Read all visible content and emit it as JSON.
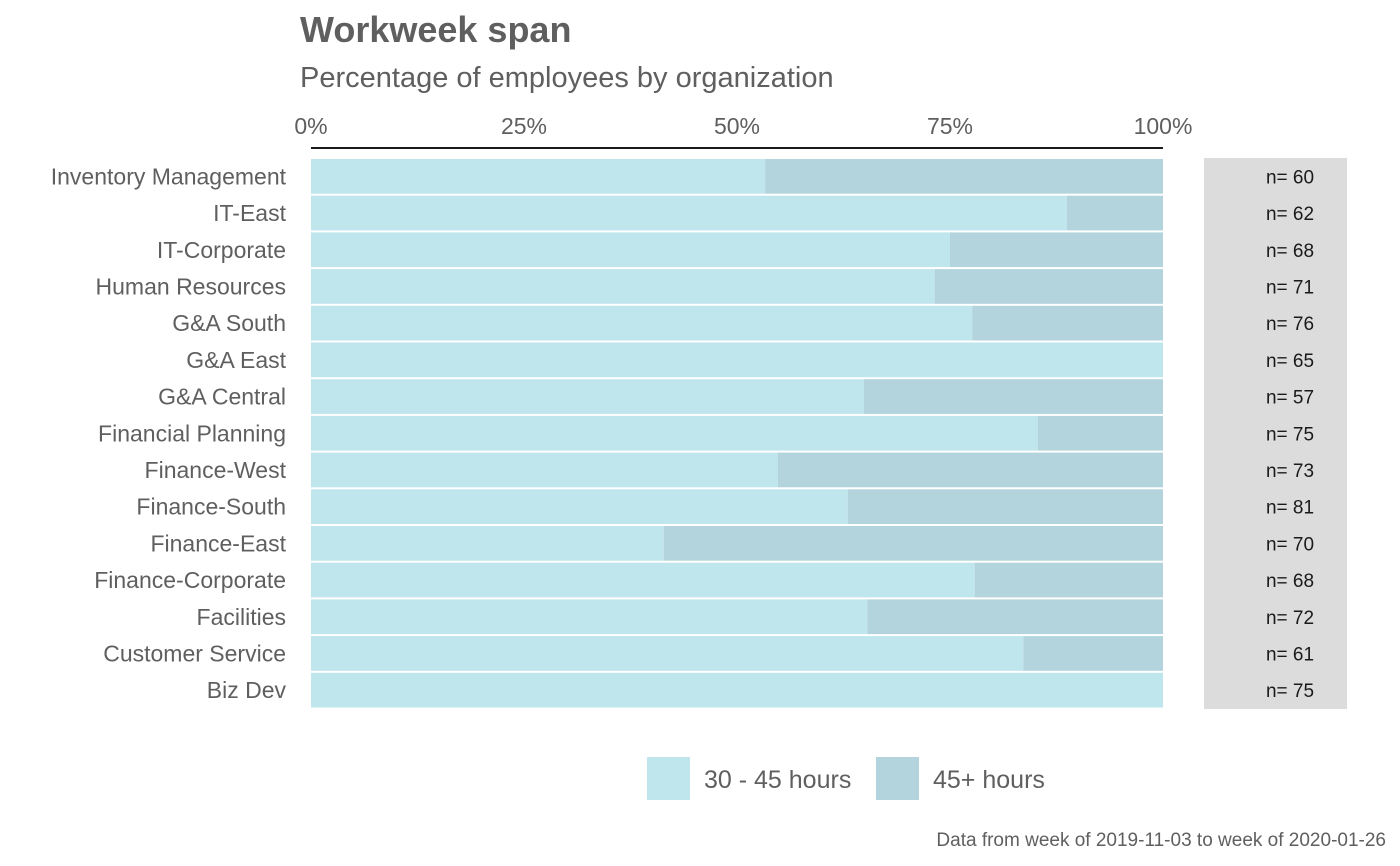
{
  "chart_data": {
    "type": "bar",
    "orientation": "horizontal",
    "stacked": true,
    "title": "Workweek span",
    "subtitle": "Percentage of employees by organization",
    "caption": "Data from week of 2019-11-03 to week of 2020-01-26",
    "xlim": [
      0,
      100
    ],
    "x_ticks": [
      "0%",
      "25%",
      "50%",
      "75%",
      "100%"
    ],
    "x_axis_position": "top",
    "grid": false,
    "legend_position": "bottom",
    "colors": {
      "30 - 45 hours": "#bfe5ed",
      "45+ hours": "#b3d4dc",
      "n_panel": "#dcdcdc"
    },
    "categories": [
      "Inventory Management",
      "IT-East",
      "IT-Corporate",
      "Human Resources",
      "G&A South",
      "G&A East",
      "G&A Central",
      "Financial Planning",
      "Finance-West",
      "Finance-South",
      "Finance-East",
      "Finance-Corporate",
      "Facilities",
      "Customer Service",
      "Biz Dev"
    ],
    "series": [
      {
        "name": "30 - 45 hours",
        "values": [
          53.3,
          88.7,
          75.0,
          73.2,
          77.6,
          100,
          64.9,
          85.3,
          54.8,
          63.0,
          41.4,
          77.9,
          65.3,
          83.6,
          100
        ]
      },
      {
        "name": "45+ hours",
        "values": [
          46.7,
          11.3,
          25.0,
          26.8,
          22.4,
          0,
          35.1,
          14.7,
          45.2,
          37.0,
          58.6,
          22.1,
          34.7,
          16.4,
          0
        ]
      }
    ],
    "n_labels": [
      "n= 60",
      "n= 62",
      "n= 68",
      "n= 71",
      "n= 76",
      "n= 65",
      "n= 57",
      "n= 75",
      "n= 73",
      "n= 81",
      "n= 70",
      "n= 68",
      "n= 72",
      "n= 61",
      "n= 75"
    ]
  }
}
